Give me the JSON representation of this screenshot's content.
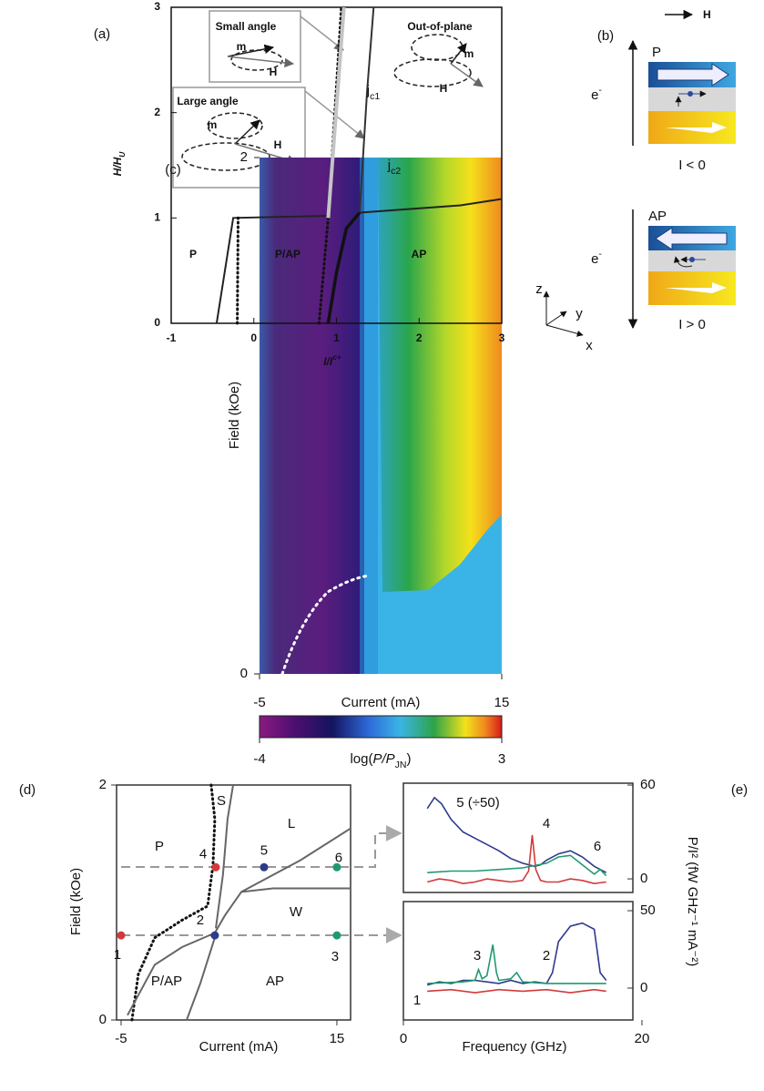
{
  "panel_a": {
    "label": "(a)",
    "xlabel": {
      "main": "I/I",
      "sup": "c+"
    },
    "ylabel": {
      "main": "H/H",
      "sub": "U"
    },
    "xlim": [
      -1,
      3
    ],
    "ylim": [
      0,
      3
    ],
    "xticks": [
      -1,
      0,
      1,
      2,
      3
    ],
    "yticks": [
      0,
      1,
      2,
      3
    ],
    "regions": [
      "P",
      "P/AP",
      "AP"
    ],
    "curve_labels": [
      {
        "main": "j",
        "sub": "c1"
      },
      {
        "main": "j",
        "sub": "c2"
      }
    ],
    "insets": [
      {
        "title": "Small angle",
        "m": "m",
        "h": "H"
      },
      {
        "title": "Large angle",
        "m": "m",
        "h": "H"
      },
      {
        "title": "Out-of-plane",
        "m": "m",
        "h": "H"
      }
    ],
    "curves": [
      {
        "style": "solid",
        "color": "#222",
        "x": [
          -0.45,
          -0.25,
          0.9
        ],
        "y": [
          0,
          1,
          1.02
        ]
      },
      {
        "style": "dotted",
        "color": "#111",
        "x": [
          -0.2,
          -0.19
        ],
        "y": [
          0,
          1
        ]
      },
      {
        "style": "dotted",
        "color": "#111",
        "x": [
          0.79,
          0.9,
          1.06
        ],
        "y": [
          0,
          1,
          3
        ]
      },
      {
        "style": "gray",
        "color": "#c4c4c4",
        "x": [
          0.9,
          1.09
        ],
        "y": [
          1,
          3
        ]
      },
      {
        "style": "solid",
        "color": "#333",
        "x": [
          0.9,
          1.0,
          1.12,
          1.28,
          1.31,
          1.37,
          1.45
        ],
        "y": [
          0,
          0.48,
          0.9,
          1.05,
          1.43,
          2.2,
          3
        ]
      },
      {
        "style": "thick",
        "color": "#111",
        "x": [
          0.9,
          1.0,
          1.12,
          1.28
        ],
        "y": [
          0,
          0.48,
          0.9,
          1.05
        ]
      },
      {
        "style": "solid",
        "color": "#222",
        "x": [
          1.28,
          2.5,
          3
        ],
        "y": [
          1.05,
          1.12,
          1.18
        ]
      }
    ]
  },
  "panel_b": {
    "label": "(b)",
    "field": "H",
    "parallel": {
      "state": "P",
      "carrier": {
        "main": "e",
        "sup": "-"
      },
      "current": "I < 0"
    },
    "antiparallel": {
      "state": "AP",
      "carrier": {
        "main": "e",
        "sup": "-"
      },
      "current": "I > 0"
    },
    "axes": [
      "z",
      "y",
      "x"
    ]
  },
  "panel_c": {
    "label": "(c)",
    "xlabel": "Current (mA)",
    "ylabel": "Field (kOe)",
    "xlim": [
      -5,
      15
    ],
    "ylim": [
      0,
      2
    ],
    "xticks": [
      -5,
      15
    ],
    "yticks": [
      0,
      2
    ],
    "colorbar": {
      "lim": [
        -4,
        3
      ],
      "ticks": [
        -4,
        3
      ],
      "label": {
        "main": "log(",
        "italic": "P/P",
        "sub": "JN",
        "end": ")"
      }
    }
  },
  "panel_d": {
    "label": "(d)",
    "xlabel": "Current (mA)",
    "ylabel": "Field (kOe)",
    "xlim": [
      -5.42,
      16.27
    ],
    "ylim": [
      0,
      2
    ],
    "xticks": [
      -5,
      15
    ],
    "yticks": [
      0,
      2
    ],
    "regions": [
      "P",
      "S",
      "L",
      "W",
      "P/AP",
      "AP"
    ],
    "curves": [
      {
        "style": "dotted",
        "x": [
          -3.99,
          -3.4,
          -1.88,
          0.65,
          3.02,
          3.52,
          3.69,
          3.35
        ],
        "y": [
          0,
          0.39,
          0.7,
          0.85,
          0.97,
          1.32,
          1.71,
          2
        ]
      },
      {
        "style": "solid",
        "x": [
          -4.41,
          -1.88,
          0.65,
          3.69,
          4.62,
          6.14,
          9.09,
          16.27
        ],
        "y": [
          0.04,
          0.47,
          0.62,
          0.74,
          0.89,
          1.09,
          1.12,
          1.12
        ]
      },
      {
        "style": "solid",
        "x": [
          3.78,
          4.45,
          4.87,
          5.38
        ],
        "y": [
          0.78,
          1.24,
          1.71,
          2
        ]
      },
      {
        "style": "solid",
        "x": [
          6.14,
          11.62,
          16.27
        ],
        "y": [
          1.09,
          1.36,
          1.63
        ]
      },
      {
        "style": "solid",
        "x": [
          1.08,
          2.34,
          3.69
        ],
        "y": [
          0,
          0.31,
          0.7
        ]
      }
    ],
    "points": [
      {
        "label": "1",
        "color": "#d23a3a",
        "x": -5,
        "y": 0.72
      },
      {
        "label": "2",
        "color": "#2e3a8c",
        "x": 3.69,
        "y": 0.72
      },
      {
        "label": "3",
        "color": "#1f9a6e",
        "x": 15,
        "y": 0.72
      },
      {
        "label": "4",
        "color": "#d23a3a",
        "x": 3.78,
        "y": 1.3
      },
      {
        "label": "5",
        "color": "#2e3a8c",
        "x": 8.25,
        "y": 1.3
      },
      {
        "label": "6",
        "color": "#1f9a6e",
        "x": 15,
        "y": 1.3
      }
    ]
  },
  "panel_e": {
    "label": "(e)",
    "xlabel": "Frequency (GHz)",
    "ylabel": "P/I² (fW GHz⁻¹ mA⁻²)",
    "xlim": [
      0,
      19.24
    ],
    "xticks": [
      0,
      20
    ],
    "plots": [
      {
        "ylim": [
          -8.7,
          61.2
        ],
        "yticks": [
          0,
          60
        ],
        "series": [
          {
            "name": "5 (÷50)",
            "color": "#2e3a8c",
            "x": [
              2,
              2.6,
              3.2,
              4,
              5,
              6,
              7,
              8,
              9,
              10,
              11,
              11.5,
              12,
              13,
              14,
              15,
              16,
              17
            ],
            "values": [
              45,
              52,
              48,
              38,
              30,
              26,
              22,
              18,
              13,
              10,
              8,
              9,
              12,
              16,
              18,
              14,
              8,
              4
            ]
          },
          {
            "name": "4",
            "color": "#d23a3a",
            "x": [
              2,
              3,
              4,
              5,
              6,
              7,
              8,
              9,
              10,
              10.5,
              10.8,
              11.1,
              11.5,
              12,
              13,
              14,
              15,
              16,
              17
            ],
            "values": [
              -2,
              0,
              -1,
              -3,
              -2,
              0,
              -1,
              -2,
              -1,
              5,
              28,
              6,
              -1,
              -2,
              -2,
              0,
              -1,
              -3,
              -2
            ]
          },
          {
            "name": "6",
            "color": "#1f9a6e",
            "x": [
              2,
              4,
              6,
              8,
              10,
              12,
              13,
              14,
              15,
              16,
              16.5,
              17
            ],
            "values": [
              4,
              5,
              5,
              6,
              7,
              10,
              14,
              15,
              9,
              3,
              6,
              2
            ]
          }
        ]
      },
      {
        "ylim": [
          -20.6,
          55.9
        ],
        "yticks": [
          0,
          50
        ],
        "series": [
          {
            "name": "2",
            "color": "#2e3a8c",
            "x": [
              2,
              3,
              4,
              5,
              6,
              7,
              8,
              9,
              10,
              11,
              12,
              12.5,
              13,
              14,
              15,
              16,
              16.5,
              17
            ],
            "values": [
              2,
              4,
              3,
              5,
              5,
              4,
              3,
              5,
              3,
              4,
              3,
              10,
              30,
              40,
              42,
              38,
              10,
              5
            ]
          },
          {
            "name": "3",
            "color": "#1f9a6e",
            "x": [
              2,
              5,
              6,
              6.3,
              6.6,
              7,
              7.5,
              7.8,
              8,
              9,
              9.5,
              10,
              12,
              15,
              17
            ],
            "values": [
              3,
              4,
              5,
              12,
              6,
              8,
              28,
              10,
              5,
              6,
              10,
              4,
              3,
              3,
              3
            ]
          },
          {
            "name": "1",
            "color": "#d23a3a",
            "x": [
              2,
              4,
              6,
              8,
              10,
              12,
              14,
              16,
              17
            ],
            "values": [
              -2,
              -1,
              -3,
              -1,
              -2,
              -1,
              -3,
              -1,
              -2
            ]
          }
        ]
      }
    ]
  }
}
